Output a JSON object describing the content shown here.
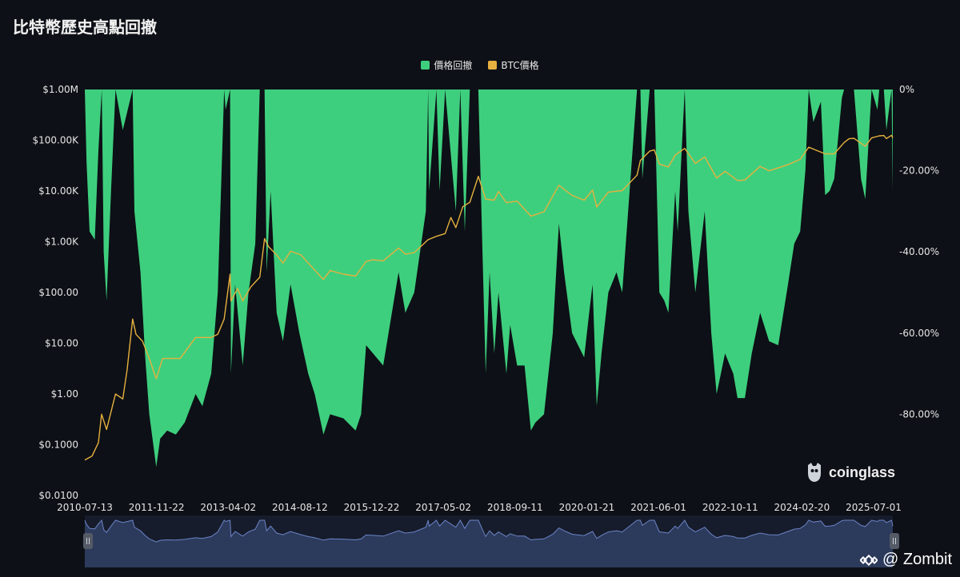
{
  "title": "比特幣歷史高點回撤",
  "legend": [
    {
      "label": "價格回撤",
      "color": "#3ecf7e"
    },
    {
      "label": "BTC價格",
      "color": "#e6b13f"
    }
  ],
  "brand": {
    "logo_text": "coinglass"
  },
  "watermark": {
    "text": "@ Zombit"
  },
  "colors": {
    "background": "#0d1016",
    "drawdown": "#3ecf7e",
    "price": "#e6b13f",
    "navigator_fill": "#2c3a5c",
    "navigator_line": "#6c84c7"
  },
  "chart_data": {
    "type": "area",
    "x_tick_labels": [
      "2010-07-13",
      "2011-11-22",
      "2013-04-02",
      "2014-08-12",
      "2015-12-22",
      "2017-05-02",
      "2018-09-11",
      "2020-01-21",
      "2021-06-01",
      "2022-10-11",
      "2024-02-20",
      "2025-07-01"
    ],
    "y_left_tick_labels": [
      "$1.00M",
      "$100.00K",
      "$10.00K",
      "$1.00K",
      "$100.00",
      "$10.00",
      "$1.00",
      "$0.1000",
      "$0.0100"
    ],
    "y_left_scale": "log",
    "y_left_range": [
      0.01,
      1000000
    ],
    "y_right_tick_labels": [
      "0%",
      "-20.00%",
      "-40.00%",
      "-60.00%",
      "-80.00%"
    ],
    "y_right_range": [
      -100,
      0
    ],
    "x_range": [
      "2010-07-13",
      "2025-10-15"
    ],
    "series": [
      {
        "name": "價格回撤",
        "axis": "right",
        "points": [
          [
            "2010-07-13",
            0
          ],
          [
            "2010-07-25",
            -18
          ],
          [
            "2010-08-15",
            -35
          ],
          [
            "2010-09-20",
            -37
          ],
          [
            "2010-10-15",
            -15
          ],
          [
            "2010-11-07",
            0
          ],
          [
            "2010-11-20",
            -40
          ],
          [
            "2010-12-10",
            -52
          ],
          [
            "2011-01-10",
            -25
          ],
          [
            "2011-02-10",
            0
          ],
          [
            "2011-04-01",
            -10
          ],
          [
            "2011-06-08",
            0
          ],
          [
            "2011-06-20",
            -30
          ],
          [
            "2011-08-01",
            -45
          ],
          [
            "2011-09-01",
            -65
          ],
          [
            "2011-10-01",
            -80
          ],
          [
            "2011-11-18",
            -93
          ],
          [
            "2011-12-15",
            -86
          ],
          [
            "2012-02-01",
            -84
          ],
          [
            "2012-04-01",
            -85
          ],
          [
            "2012-06-01",
            -82
          ],
          [
            "2012-08-15",
            -75
          ],
          [
            "2012-10-01",
            -78
          ],
          [
            "2012-12-01",
            -70
          ],
          [
            "2013-01-15",
            -50
          ],
          [
            "2013-02-28",
            0
          ],
          [
            "2013-03-10",
            -5
          ],
          [
            "2013-04-10",
            0
          ],
          [
            "2013-04-16",
            -70
          ],
          [
            "2013-05-15",
            -48
          ],
          [
            "2013-07-06",
            -68
          ],
          [
            "2013-08-15",
            -50
          ],
          [
            "2013-10-01",
            -38
          ],
          [
            "2013-11-01",
            0
          ],
          [
            "2013-12-04",
            0
          ],
          [
            "2013-12-18",
            -45
          ],
          [
            "2014-01-15",
            -25
          ],
          [
            "2014-02-25",
            -55
          ],
          [
            "2014-04-10",
            -62
          ],
          [
            "2014-06-01",
            -48
          ],
          [
            "2014-08-01",
            -60
          ],
          [
            "2014-10-01",
            -70
          ],
          [
            "2014-11-15",
            -75
          ],
          [
            "2015-01-14",
            -85
          ],
          [
            "2015-03-01",
            -80
          ],
          [
            "2015-06-01",
            -81
          ],
          [
            "2015-08-24",
            -84
          ],
          [
            "2015-10-01",
            -80
          ],
          [
            "2015-11-04",
            -63
          ],
          [
            "2015-12-22",
            -65
          ],
          [
            "2016-03-01",
            -68
          ],
          [
            "2016-06-15",
            -45
          ],
          [
            "2016-08-01",
            -55
          ],
          [
            "2016-10-01",
            -50
          ],
          [
            "2016-12-20",
            -30
          ],
          [
            "2017-01-05",
            0
          ],
          [
            "2017-01-12",
            -25
          ],
          [
            "2017-03-03",
            0
          ],
          [
            "2017-03-25",
            -25
          ],
          [
            "2017-05-02",
            0
          ],
          [
            "2017-07-15",
            -30
          ],
          [
            "2017-08-15",
            0
          ],
          [
            "2017-09-15",
            -35
          ],
          [
            "2017-10-20",
            0
          ],
          [
            "2017-12-17",
            0
          ],
          [
            "2018-01-15",
            -40
          ],
          [
            "2018-02-06",
            -70
          ],
          [
            "2018-03-05",
            -45
          ],
          [
            "2018-04-06",
            -65
          ],
          [
            "2018-05-05",
            -50
          ],
          [
            "2018-06-29",
            -70
          ],
          [
            "2018-07-25",
            -58
          ],
          [
            "2018-09-11",
            -68
          ],
          [
            "2018-11-01",
            -68
          ],
          [
            "2018-12-15",
            -84
          ],
          [
            "2019-01-15",
            -82
          ],
          [
            "2019-03-15",
            -80
          ],
          [
            "2019-05-15",
            -60
          ],
          [
            "2019-06-26",
            -33
          ],
          [
            "2019-08-01",
            -45
          ],
          [
            "2019-09-25",
            -60
          ],
          [
            "2019-12-17",
            -66
          ],
          [
            "2020-01-21",
            -55
          ],
          [
            "2020-02-13",
            -48
          ],
          [
            "2020-03-13",
            -78
          ],
          [
            "2020-04-15",
            -65
          ],
          [
            "2020-06-01",
            -50
          ],
          [
            "2020-07-27",
            -45
          ],
          [
            "2020-09-05",
            -50
          ],
          [
            "2020-11-15",
            -15
          ],
          [
            "2020-12-16",
            0
          ],
          [
            "2021-01-08",
            0
          ],
          [
            "2021-01-22",
            -22
          ],
          [
            "2021-03-13",
            0
          ],
          [
            "2021-04-14",
            0
          ],
          [
            "2021-05-19",
            -50
          ],
          [
            "2021-06-22",
            -52
          ],
          [
            "2021-07-20",
            -55
          ],
          [
            "2021-09-05",
            -25
          ],
          [
            "2021-09-22",
            -35
          ],
          [
            "2021-11-10",
            0
          ],
          [
            "2021-12-05",
            -30
          ],
          [
            "2022-01-22",
            -50
          ],
          [
            "2022-03-28",
            -30
          ],
          [
            "2022-05-12",
            -60
          ],
          [
            "2022-06-18",
            -75
          ],
          [
            "2022-08-15",
            -65
          ],
          [
            "2022-10-11",
            -70
          ],
          [
            "2022-11-09",
            -76
          ],
          [
            "2022-12-30",
            -76
          ],
          [
            "2023-02-15",
            -65
          ],
          [
            "2023-04-14",
            -55
          ],
          [
            "2023-06-15",
            -62
          ],
          [
            "2023-08-17",
            -63
          ],
          [
            "2023-10-23",
            -48
          ],
          [
            "2023-12-05",
            -38
          ],
          [
            "2024-01-15",
            -35
          ],
          [
            "2024-02-20",
            -20
          ],
          [
            "2024-03-14",
            0
          ],
          [
            "2024-04-15",
            -8
          ],
          [
            "2024-06-06",
            -3
          ],
          [
            "2024-07-05",
            -26
          ],
          [
            "2024-08-05",
            -25
          ],
          [
            "2024-09-06",
            -22
          ],
          [
            "2024-10-29",
            -2
          ],
          [
            "2024-11-13",
            0
          ],
          [
            "2024-12-17",
            0
          ],
          [
            "2025-01-20",
            0
          ],
          [
            "2025-03-10",
            -22
          ],
          [
            "2025-04-08",
            -27
          ],
          [
            "2025-05-22",
            0
          ],
          [
            "2025-07-01",
            -5
          ],
          [
            "2025-07-14",
            0
          ],
          [
            "2025-08-14",
            0
          ],
          [
            "2025-09-01",
            -10
          ],
          [
            "2025-10-06",
            0
          ],
          [
            "2025-10-15",
            -25
          ]
        ]
      },
      {
        "name": "BTC價格",
        "axis": "left",
        "points": [
          [
            "2010-07-13",
            0.05
          ],
          [
            "2010-09-01",
            0.06
          ],
          [
            "2010-10-15",
            0.11
          ],
          [
            "2010-11-06",
            0.4
          ],
          [
            "2010-12-10",
            0.2
          ],
          [
            "2011-02-10",
            1.0
          ],
          [
            "2011-04-01",
            0.8
          ],
          [
            "2011-05-01",
            3.0
          ],
          [
            "2011-06-08",
            30
          ],
          [
            "2011-07-01",
            15
          ],
          [
            "2011-08-15",
            11
          ],
          [
            "2011-10-01",
            5
          ],
          [
            "2011-11-18",
            2.0
          ],
          [
            "2012-01-01",
            5
          ],
          [
            "2012-05-01",
            5
          ],
          [
            "2012-08-15",
            13
          ],
          [
            "2012-12-01",
            13
          ],
          [
            "2013-01-15",
            15
          ],
          [
            "2013-02-28",
            30
          ],
          [
            "2013-04-10",
            230
          ],
          [
            "2013-04-16",
            68
          ],
          [
            "2013-06-01",
            120
          ],
          [
            "2013-07-06",
            68
          ],
          [
            "2013-09-01",
            130
          ],
          [
            "2013-11-01",
            200
          ],
          [
            "2013-12-04",
            1150
          ],
          [
            "2014-01-01",
            800
          ],
          [
            "2014-02-25",
            550
          ],
          [
            "2014-04-10",
            380
          ],
          [
            "2014-06-01",
            650
          ],
          [
            "2014-08-12",
            550
          ],
          [
            "2014-10-01",
            380
          ],
          [
            "2015-01-14",
            180
          ],
          [
            "2015-03-01",
            270
          ],
          [
            "2015-06-01",
            230
          ],
          [
            "2015-08-24",
            210
          ],
          [
            "2015-11-04",
            410
          ],
          [
            "2015-12-22",
            440
          ],
          [
            "2016-03-01",
            420
          ],
          [
            "2016-06-15",
            750
          ],
          [
            "2016-08-01",
            570
          ],
          [
            "2016-10-01",
            610
          ],
          [
            "2017-01-05",
            1100
          ],
          [
            "2017-03-03",
            1280
          ],
          [
            "2017-05-02",
            1450
          ],
          [
            "2017-06-11",
            3000
          ],
          [
            "2017-07-15",
            1900
          ],
          [
            "2017-09-01",
            4900
          ],
          [
            "2017-10-20",
            6000
          ],
          [
            "2017-12-17",
            19500
          ],
          [
            "2018-02-06",
            6900
          ],
          [
            "2018-04-06",
            6600
          ],
          [
            "2018-05-05",
            9800
          ],
          [
            "2018-06-29",
            5900
          ],
          [
            "2018-09-11",
            6300
          ],
          [
            "2018-12-15",
            3200
          ],
          [
            "2019-03-15",
            3900
          ],
          [
            "2019-06-26",
            13000
          ],
          [
            "2019-09-25",
            8200
          ],
          [
            "2019-12-17",
            6600
          ],
          [
            "2020-02-13",
            10400
          ],
          [
            "2020-03-13",
            4800
          ],
          [
            "2020-06-01",
            9500
          ],
          [
            "2020-09-05",
            10200
          ],
          [
            "2020-12-16",
            20500
          ],
          [
            "2021-01-08",
            40000
          ],
          [
            "2021-03-13",
            61000
          ],
          [
            "2021-04-14",
            64500
          ],
          [
            "2021-05-19",
            34000
          ],
          [
            "2021-07-20",
            29800
          ],
          [
            "2021-09-05",
            51000
          ],
          [
            "2021-11-10",
            69000
          ],
          [
            "2022-01-22",
            35000
          ],
          [
            "2022-03-28",
            47000
          ],
          [
            "2022-06-18",
            18000
          ],
          [
            "2022-08-15",
            24500
          ],
          [
            "2022-11-09",
            16000
          ],
          [
            "2022-12-30",
            16500
          ],
          [
            "2023-04-14",
            30500
          ],
          [
            "2023-06-15",
            25000
          ],
          [
            "2023-10-23",
            33000
          ],
          [
            "2024-01-15",
            42000
          ],
          [
            "2024-03-14",
            73000
          ],
          [
            "2024-07-05",
            54000
          ],
          [
            "2024-09-06",
            54000
          ],
          [
            "2024-11-13",
            90000
          ],
          [
            "2024-12-17",
            107000
          ],
          [
            "2025-01-20",
            109000
          ],
          [
            "2025-04-08",
            76000
          ],
          [
            "2025-05-22",
            111000
          ],
          [
            "2025-07-14",
            122000
          ],
          [
            "2025-08-14",
            124000
          ],
          [
            "2025-09-01",
            108000
          ],
          [
            "2025-10-06",
            125000
          ],
          [
            "2025-10-15",
            111000
          ]
        ]
      }
    ],
    "grid": false,
    "legend_position": "top-center",
    "navigator": true
  }
}
